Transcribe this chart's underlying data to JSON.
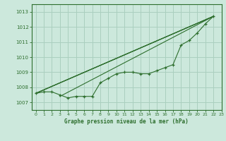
{
  "title": "Graphe pression niveau de la mer (hPa)",
  "bg_color": "#cce8dc",
  "grid_color": "#aacfbf",
  "line_color": "#2d6e2d",
  "xlim": [
    -0.5,
    23
  ],
  "ylim": [
    1006.5,
    1013.5
  ],
  "yticks": [
    1007,
    1008,
    1009,
    1010,
    1011,
    1012,
    1013
  ],
  "xticks": [
    0,
    1,
    2,
    3,
    4,
    5,
    6,
    7,
    8,
    9,
    10,
    11,
    12,
    13,
    14,
    15,
    16,
    17,
    18,
    19,
    20,
    21,
    22,
    23
  ],
  "main_series_x": [
    0,
    1,
    2,
    3,
    4,
    5,
    6,
    7,
    8,
    9,
    10,
    11,
    12,
    13,
    14,
    15,
    16,
    17,
    18,
    19,
    20,
    21,
    22
  ],
  "main_series_y": [
    1007.6,
    1007.7,
    1007.7,
    1007.5,
    1007.3,
    1007.4,
    1007.4,
    1007.4,
    1008.3,
    1008.6,
    1008.9,
    1009.0,
    1009.0,
    1008.9,
    1008.9,
    1009.1,
    1009.3,
    1009.5,
    1010.8,
    1011.1,
    1011.6,
    1012.2,
    1012.7
  ],
  "trend_lines": [
    {
      "x": [
        0,
        22
      ],
      "y": [
        1007.6,
        1012.7
      ]
    },
    {
      "x": [
        0,
        22
      ],
      "y": [
        1007.6,
        1012.7
      ]
    },
    {
      "x": [
        3,
        22
      ],
      "y": [
        1007.4,
        1012.7
      ]
    },
    {
      "x": [
        0,
        22
      ],
      "y": [
        1007.6,
        1012.7
      ]
    }
  ]
}
